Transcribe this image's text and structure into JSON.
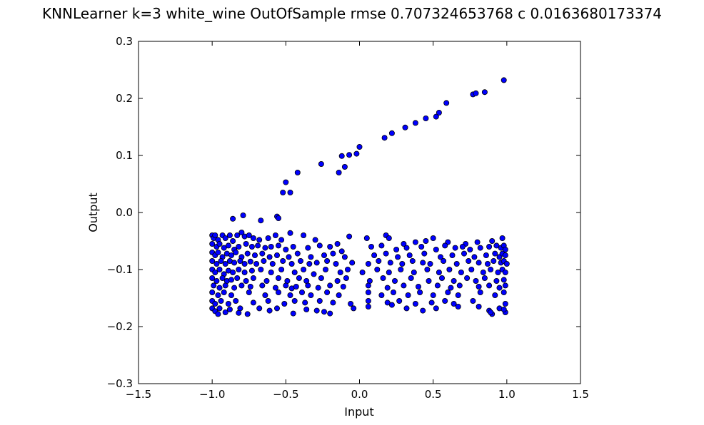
{
  "chart_data": {
    "type": "scatter",
    "title": "KNNLearner k=3 white_wine OutOfSample rmse 0.707324653768 c 0.0163680173374",
    "xlabel": "Input",
    "ylabel": "Output",
    "xlim": [
      -1.5,
      1.5
    ],
    "ylim": [
      -0.3,
      0.3
    ],
    "xticks": [
      -1.5,
      -1.0,
      -0.5,
      0.0,
      0.5,
      1.0,
      1.5
    ],
    "xtick_labels": [
      "−1.5",
      "−1.0",
      "−0.5",
      "0.0",
      "0.5",
      "1.0",
      "1.5"
    ],
    "yticks": [
      -0.3,
      -0.2,
      -0.1,
      0.0,
      0.1,
      0.2,
      0.3
    ],
    "ytick_labels": [
      "−0.3",
      "−0.2",
      "−0.1",
      "0.0",
      "0.1",
      "0.2",
      "0.3"
    ],
    "grid": false,
    "marker_color": "#0000ff",
    "marker_edge_color": "#000000",
    "points": [
      [
        -0.52,
        0.035
      ],
      [
        -0.5,
        0.053
      ],
      [
        -0.47,
        0.035
      ],
      [
        -0.42,
        0.07
      ],
      [
        -0.26,
        0.085
      ],
      [
        -0.14,
        0.07
      ],
      [
        -0.12,
        0.099
      ],
      [
        -0.1,
        0.08
      ],
      [
        -0.07,
        0.101
      ],
      [
        -0.02,
        0.103
      ],
      [
        0.0,
        0.115
      ],
      [
        0.17,
        0.131
      ],
      [
        0.22,
        0.139
      ],
      [
        0.31,
        0.149
      ],
      [
        0.38,
        0.157
      ],
      [
        0.45,
        0.165
      ],
      [
        0.52,
        0.168
      ],
      [
        0.54,
        0.175
      ],
      [
        0.59,
        0.192
      ],
      [
        0.77,
        0.207
      ],
      [
        0.79,
        0.209
      ],
      [
        0.85,
        0.211
      ],
      [
        0.98,
        0.232
      ],
      [
        -0.86,
        -0.011
      ],
      [
        -0.79,
        -0.005
      ],
      [
        -0.67,
        -0.014
      ],
      [
        -0.56,
        -0.007
      ],
      [
        -0.55,
        -0.01
      ],
      [
        -1.0,
        -0.04
      ],
      [
        -0.99,
        -0.045
      ],
      [
        -0.98,
        -0.04
      ],
      [
        -0.96,
        -0.048
      ],
      [
        -0.93,
        -0.04
      ],
      [
        -0.91,
        -0.045
      ],
      [
        -0.88,
        -0.04
      ],
      [
        -0.86,
        -0.05
      ],
      [
        -0.83,
        -0.04
      ],
      [
        -0.8,
        -0.035
      ],
      [
        -0.78,
        -0.042
      ],
      [
        -0.75,
        -0.04
      ],
      [
        -0.72,
        -0.045
      ],
      [
        -0.68,
        -0.048
      ],
      [
        -0.62,
        -0.045
      ],
      [
        -0.57,
        -0.04
      ],
      [
        -0.53,
        -0.048
      ],
      [
        -0.47,
        -0.036
      ],
      [
        -0.38,
        -0.04
      ],
      [
        -0.3,
        -0.048
      ],
      [
        -0.15,
        -0.055
      ],
      [
        -0.07,
        -0.042
      ],
      [
        0.05,
        -0.045
      ],
      [
        0.18,
        -0.04
      ],
      [
        0.2,
        -0.045
      ],
      [
        0.3,
        -0.055
      ],
      [
        0.38,
        -0.052
      ],
      [
        0.45,
        -0.05
      ],
      [
        0.5,
        -0.045
      ],
      [
        0.6,
        -0.052
      ],
      [
        0.72,
        -0.055
      ],
      [
        0.8,
        -0.052
      ],
      [
        0.9,
        -0.05
      ],
      [
        0.97,
        -0.045
      ],
      [
        -1.0,
        -0.055
      ],
      [
        -0.97,
        -0.06
      ],
      [
        -0.95,
        -0.055
      ],
      [
        -0.92,
        -0.062
      ],
      [
        -0.89,
        -0.058
      ],
      [
        -0.85,
        -0.065
      ],
      [
        -0.82,
        -0.06
      ],
      [
        -0.77,
        -0.055
      ],
      [
        -0.73,
        -0.06
      ],
      [
        -0.69,
        -0.058
      ],
      [
        -0.64,
        -0.062
      ],
      [
        -0.6,
        -0.06
      ],
      [
        -0.55,
        -0.058
      ],
      [
        -0.5,
        -0.065
      ],
      [
        -0.45,
        -0.06
      ],
      [
        -0.35,
        -0.062
      ],
      [
        -0.27,
        -0.058
      ],
      [
        -0.2,
        -0.06
      ],
      [
        -0.12,
        -0.068
      ],
      [
        0.08,
        -0.06
      ],
      [
        0.15,
        -0.058
      ],
      [
        0.25,
        -0.065
      ],
      [
        0.32,
        -0.062
      ],
      [
        0.42,
        -0.06
      ],
      [
        0.52,
        -0.065
      ],
      [
        0.58,
        -0.058
      ],
      [
        0.65,
        -0.062
      ],
      [
        0.7,
        -0.06
      ],
      [
        0.75,
        -0.065
      ],
      [
        0.82,
        -0.062
      ],
      [
        0.88,
        -0.06
      ],
      [
        0.93,
        -0.058
      ],
      [
        0.96,
        -0.062
      ],
      [
        0.98,
        -0.058
      ],
      [
        0.99,
        -0.065
      ],
      [
        -1.0,
        -0.07
      ],
      [
        -0.98,
        -0.075
      ],
      [
        -0.96,
        -0.07
      ],
      [
        -0.93,
        -0.078
      ],
      [
        -0.9,
        -0.072
      ],
      [
        -0.87,
        -0.075
      ],
      [
        -0.84,
        -0.07
      ],
      [
        -0.8,
        -0.078
      ],
      [
        -0.76,
        -0.072
      ],
      [
        -0.71,
        -0.075
      ],
      [
        -0.66,
        -0.072
      ],
      [
        -0.61,
        -0.078
      ],
      [
        -0.56,
        -0.075
      ],
      [
        -0.48,
        -0.078
      ],
      [
        -0.42,
        -0.072
      ],
      [
        -0.33,
        -0.078
      ],
      [
        -0.24,
        -0.075
      ],
      [
        -0.18,
        -0.072
      ],
      [
        -0.1,
        -0.078
      ],
      [
        0.1,
        -0.075
      ],
      [
        0.18,
        -0.072
      ],
      [
        0.26,
        -0.078
      ],
      [
        0.34,
        -0.075
      ],
      [
        0.44,
        -0.072
      ],
      [
        0.55,
        -0.078
      ],
      [
        0.63,
        -0.075
      ],
      [
        0.71,
        -0.072
      ],
      [
        0.78,
        -0.078
      ],
      [
        0.86,
        -0.075
      ],
      [
        0.92,
        -0.072
      ],
      [
        0.95,
        -0.078
      ],
      [
        0.97,
        -0.072
      ],
      [
        0.99,
        -0.075
      ],
      [
        -1.0,
        -0.085
      ],
      [
        -0.97,
        -0.09
      ],
      [
        -0.94,
        -0.085
      ],
      [
        -0.91,
        -0.09
      ],
      [
        -0.88,
        -0.085
      ],
      [
        -0.85,
        -0.088
      ],
      [
        -0.81,
        -0.085
      ],
      [
        -0.78,
        -0.09
      ],
      [
        -0.74,
        -0.086
      ],
      [
        -0.7,
        -0.09
      ],
      [
        -0.65,
        -0.085
      ],
      [
        -0.59,
        -0.09
      ],
      [
        -0.52,
        -0.085
      ],
      [
        -0.46,
        -0.09
      ],
      [
        -0.4,
        -0.085
      ],
      [
        -0.34,
        -0.09
      ],
      [
        -0.29,
        -0.088
      ],
      [
        -0.22,
        -0.085
      ],
      [
        -0.16,
        -0.09
      ],
      [
        -0.05,
        -0.088
      ],
      [
        0.06,
        -0.09
      ],
      [
        0.13,
        -0.085
      ],
      [
        0.21,
        -0.088
      ],
      [
        0.29,
        -0.09
      ],
      [
        0.36,
        -0.085
      ],
      [
        0.43,
        -0.088
      ],
      [
        0.48,
        -0.09
      ],
      [
        0.57,
        -0.085
      ],
      [
        0.66,
        -0.09
      ],
      [
        0.74,
        -0.085
      ],
      [
        0.81,
        -0.088
      ],
      [
        0.87,
        -0.09
      ],
      [
        0.91,
        -0.085
      ],
      [
        0.96,
        -0.088
      ],
      [
        0.98,
        -0.085
      ],
      [
        1.0,
        -0.09
      ],
      [
        -1.0,
        -0.1
      ],
      [
        -0.98,
        -0.105
      ],
      [
        -0.95,
        -0.1
      ],
      [
        -0.92,
        -0.108
      ],
      [
        -0.89,
        -0.102
      ],
      [
        -0.86,
        -0.105
      ],
      [
        -0.82,
        -0.1
      ],
      [
        -0.78,
        -0.105
      ],
      [
        -0.73,
        -0.102
      ],
      [
        -0.67,
        -0.1
      ],
      [
        -0.6,
        -0.105
      ],
      [
        -0.53,
        -0.1
      ],
      [
        -0.44,
        -0.105
      ],
      [
        -0.38,
        -0.1
      ],
      [
        -0.31,
        -0.108
      ],
      [
        -0.23,
        -0.1
      ],
      [
        -0.13,
        -0.105
      ],
      [
        -0.08,
        -0.1
      ],
      [
        0.02,
        -0.105
      ],
      [
        0.12,
        -0.1
      ],
      [
        0.2,
        -0.105
      ],
      [
        0.28,
        -0.1
      ],
      [
        0.37,
        -0.105
      ],
      [
        0.46,
        -0.1
      ],
      [
        0.54,
        -0.105
      ],
      [
        0.61,
        -0.1
      ],
      [
        0.69,
        -0.105
      ],
      [
        0.76,
        -0.1
      ],
      [
        0.84,
        -0.105
      ],
      [
        0.89,
        -0.1
      ],
      [
        0.94,
        -0.105
      ],
      [
        0.97,
        -0.1
      ],
      [
        0.99,
        -0.105
      ],
      [
        -1.0,
        -0.115
      ],
      [
        -0.97,
        -0.12
      ],
      [
        -0.93,
        -0.115
      ],
      [
        -0.9,
        -0.12
      ],
      [
        -0.87,
        -0.118
      ],
      [
        -0.83,
        -0.115
      ],
      [
        -0.77,
        -0.12
      ],
      [
        -0.72,
        -0.115
      ],
      [
        -0.63,
        -0.12
      ],
      [
        -0.55,
        -0.115
      ],
      [
        -0.49,
        -0.12
      ],
      [
        -0.41,
        -0.115
      ],
      [
        -0.36,
        -0.12
      ],
      [
        -0.26,
        -0.115
      ],
      [
        -0.15,
        -0.12
      ],
      [
        -0.09,
        -0.115
      ],
      [
        0.07,
        -0.12
      ],
      [
        0.16,
        -0.115
      ],
      [
        0.24,
        -0.12
      ],
      [
        0.35,
        -0.115
      ],
      [
        0.47,
        -0.12
      ],
      [
        0.56,
        -0.115
      ],
      [
        0.64,
        -0.12
      ],
      [
        0.73,
        -0.115
      ],
      [
        0.79,
        -0.12
      ],
      [
        0.85,
        -0.115
      ],
      [
        0.93,
        -0.12
      ],
      [
        0.98,
        -0.118
      ],
      [
        -0.99,
        -0.128
      ],
      [
        -0.95,
        -0.132
      ],
      [
        -0.91,
        -0.128
      ],
      [
        -0.85,
        -0.132
      ],
      [
        -0.8,
        -0.128
      ],
      [
        -0.74,
        -0.13
      ],
      [
        -0.66,
        -0.128
      ],
      [
        -0.57,
        -0.132
      ],
      [
        -0.5,
        -0.128
      ],
      [
        -0.46,
        -0.133
      ],
      [
        -0.43,
        -0.13
      ],
      [
        -0.35,
        -0.128
      ],
      [
        -0.28,
        -0.132
      ],
      [
        -0.2,
        -0.128
      ],
      [
        -0.11,
        -0.13
      ],
      [
        0.06,
        -0.128
      ],
      [
        0.19,
        -0.132
      ],
      [
        0.3,
        -0.128
      ],
      [
        0.4,
        -0.13
      ],
      [
        0.53,
        -0.128
      ],
      [
        0.62,
        -0.132
      ],
      [
        0.68,
        -0.128
      ],
      [
        0.81,
        -0.13
      ],
      [
        0.88,
        -0.128
      ],
      [
        0.95,
        -0.132
      ],
      [
        0.99,
        -0.128
      ],
      [
        -1.0,
        -0.14
      ],
      [
        -0.96,
        -0.145
      ],
      [
        -0.92,
        -0.14
      ],
      [
        -0.87,
        -0.145
      ],
      [
        -0.75,
        -0.14
      ],
      [
        -0.64,
        -0.145
      ],
      [
        -0.55,
        -0.14
      ],
      [
        -0.47,
        -0.145
      ],
      [
        -0.39,
        -0.14
      ],
      [
        -0.33,
        -0.145
      ],
      [
        -0.22,
        -0.14
      ],
      [
        -0.14,
        -0.145
      ],
      [
        0.06,
        -0.14
      ],
      [
        0.15,
        -0.145
      ],
      [
        0.23,
        -0.14
      ],
      [
        0.33,
        -0.145
      ],
      [
        0.41,
        -0.14
      ],
      [
        0.5,
        -0.145
      ],
      [
        0.6,
        -0.14
      ],
      [
        0.67,
        -0.145
      ],
      [
        0.82,
        -0.14
      ],
      [
        0.92,
        -0.145
      ],
      [
        0.98,
        -0.14
      ],
      [
        -1.0,
        -0.155
      ],
      [
        -0.98,
        -0.16
      ],
      [
        -0.94,
        -0.155
      ],
      [
        -0.89,
        -0.16
      ],
      [
        -0.84,
        -0.155
      ],
      [
        -0.72,
        -0.158
      ],
      [
        -0.62,
        -0.155
      ],
      [
        -0.51,
        -0.16
      ],
      [
        -0.44,
        -0.155
      ],
      [
        -0.37,
        -0.158
      ],
      [
        -0.27,
        -0.155
      ],
      [
        -0.18,
        -0.158
      ],
      [
        -0.06,
        -0.16
      ],
      [
        0.06,
        -0.155
      ],
      [
        0.19,
        -0.158
      ],
      [
        0.27,
        -0.155
      ],
      [
        0.38,
        -0.16
      ],
      [
        0.49,
        -0.158
      ],
      [
        0.58,
        -0.155
      ],
      [
        0.64,
        -0.16
      ],
      [
        0.77,
        -0.155
      ],
      [
        0.99,
        -0.16
      ],
      [
        -1.0,
        -0.168
      ],
      [
        -0.98,
        -0.173
      ],
      [
        -0.95,
        -0.168
      ],
      [
        -0.91,
        -0.175
      ],
      [
        -0.88,
        -0.17
      ],
      [
        -0.81,
        -0.168
      ],
      [
        -0.76,
        -0.178
      ],
      [
        -0.68,
        -0.168
      ],
      [
        -0.61,
        -0.172
      ],
      [
        -0.56,
        -0.168
      ],
      [
        -0.45,
        -0.177
      ],
      [
        -0.36,
        -0.17
      ],
      [
        -0.24,
        -0.174
      ],
      [
        -0.2,
        -0.177
      ],
      [
        -0.04,
        -0.168
      ],
      [
        0.06,
        -0.165
      ],
      [
        0.22,
        -0.162
      ],
      [
        0.32,
        -0.168
      ],
      [
        0.43,
        -0.172
      ],
      [
        0.52,
        -0.168
      ],
      [
        0.67,
        -0.165
      ],
      [
        0.81,
        -0.165
      ],
      [
        0.88,
        -0.172
      ],
      [
        0.9,
        -0.178
      ],
      [
        0.95,
        -0.168
      ],
      [
        0.99,
        -0.175
      ],
      [
        -0.96,
        -0.178
      ],
      [
        -0.82,
        -0.176
      ],
      [
        -0.29,
        -0.172
      ],
      [
        0.89,
        -0.175
      ],
      [
        0.98,
        -0.17
      ]
    ]
  }
}
